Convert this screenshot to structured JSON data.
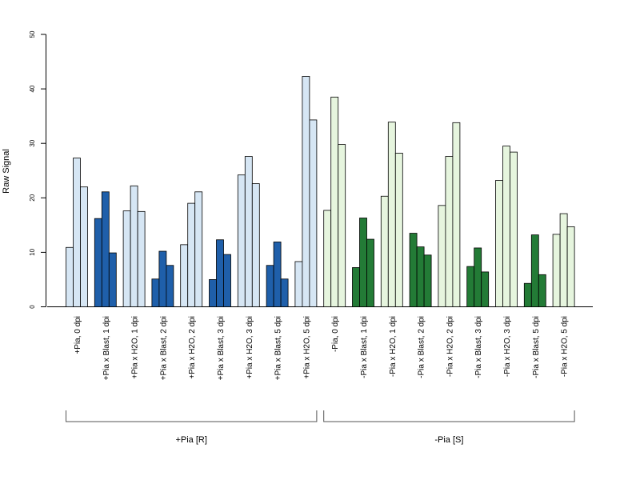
{
  "chart_data": {
    "type": "bar",
    "ylabel": "Raw Signal",
    "ylim": [
      0,
      50
    ],
    "yticks": [
      0,
      10,
      20,
      30,
      40,
      50
    ],
    "categories": [
      "+Pia, 0 dpi",
      "+Pia x Blast, 1 dpi",
      "+Pia x H2O, 1 dpi",
      "+Pia x Blast, 2 dpi",
      "+Pia x H2O, 2 dpi",
      "+Pia x Blast, 3 dpi",
      "+Pia x H2O, 3 dpi",
      "+Pia x Blast, 5 dpi",
      "+Pia x H2O, 5 dpi",
      "-Pia, 0 dpi",
      "-Pia x Blast, 1 dpi",
      "-Pia x H2O, 1 dpi",
      "-Pia x Blast, 2 dpi",
      "-Pia x H2O, 2 dpi",
      "-Pia x Blast, 3 dpi",
      "-Pia x H2O, 3 dpi",
      "-Pia x Blast, 5 dpi",
      "-Pia x H2O, 5 dpi"
    ],
    "values": [
      [
        10.9,
        27.3,
        22.0
      ],
      [
        16.2,
        21.1,
        9.9
      ],
      [
        17.6,
        22.2,
        17.5
      ],
      [
        5.1,
        10.2,
        7.6
      ],
      [
        11.4,
        19.0,
        21.1
      ],
      [
        5.0,
        12.3,
        9.6
      ],
      [
        24.2,
        27.6,
        22.6
      ],
      [
        7.6,
        11.9,
        5.1
      ],
      [
        8.3,
        42.3,
        34.3
      ],
      [
        17.7,
        38.5,
        29.8
      ],
      [
        7.2,
        16.3,
        12.4
      ],
      [
        20.3,
        33.9,
        28.2
      ],
      [
        13.5,
        11.0,
        9.5
      ],
      [
        18.6,
        27.6,
        33.8
      ],
      [
        7.4,
        10.8,
        6.4
      ],
      [
        23.2,
        29.5,
        28.4
      ],
      [
        4.3,
        13.2,
        5.9
      ],
      [
        13.3,
        17.1,
        14.7
      ]
    ],
    "bar_fill": [
      "#d6e6f4",
      "#1f5faa",
      "#d6e6f4",
      "#1f5faa",
      "#d6e6f4",
      "#1f5faa",
      "#d6e6f4",
      "#1f5faa",
      "#d6e6f4",
      "#e6f5de",
      "#237b36",
      "#e6f5de",
      "#237b36",
      "#e6f5de",
      "#237b36",
      "#e6f5de",
      "#237b36",
      "#e6f5de"
    ],
    "groups": [
      {
        "label": "+Pia [R]"
      },
      {
        "label": "-Pia [S]"
      }
    ]
  }
}
